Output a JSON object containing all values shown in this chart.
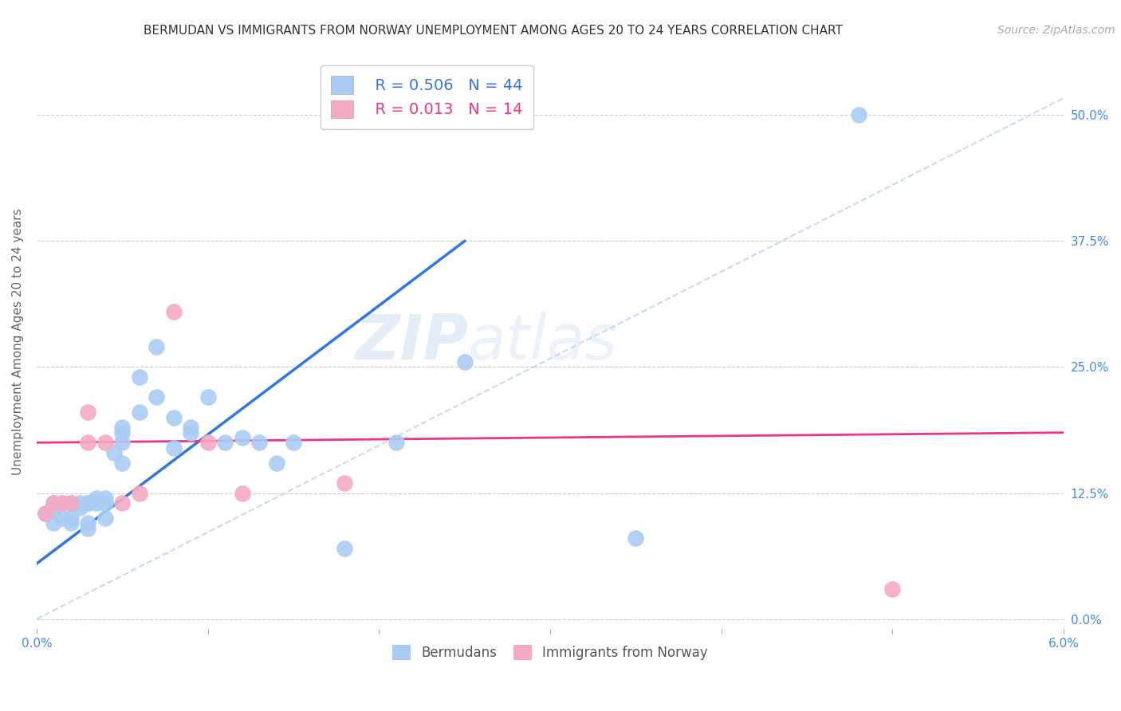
{
  "title": "BERMUDAN VS IMMIGRANTS FROM NORWAY UNEMPLOYMENT AMONG AGES 20 TO 24 YEARS CORRELATION CHART",
  "source": "Source: ZipAtlas.com",
  "ylabel": "Unemployment Among Ages 20 to 24 years",
  "xlim": [
    0.0,
    0.06
  ],
  "ylim": [
    -0.01,
    0.56
  ],
  "yticks": [
    0.0,
    0.125,
    0.25,
    0.375,
    0.5
  ],
  "ytick_labels": [
    "0.0%",
    "12.5%",
    "25.0%",
    "37.5%",
    "50.0%"
  ],
  "xticks": [
    0.0,
    0.01,
    0.02,
    0.03,
    0.04,
    0.05,
    0.06
  ],
  "xtick_labels": [
    "0.0%",
    "",
    "",
    "",
    "",
    "",
    "6.0%"
  ],
  "legend_blue_r": "0.506",
  "legend_blue_n": "44",
  "legend_pink_r": "0.013",
  "legend_pink_n": "14",
  "blue_color": "#aaccf4",
  "pink_color": "#f4aac4",
  "trend_blue_color": "#3377dd",
  "trend_pink_color": "#ee3388",
  "trend_dashed_color": "#b8d4f0",
  "watermark_zip": "ZIP",
  "watermark_atlas": "atlas",
  "blue_scatter_x": [
    0.0005,
    0.001,
    0.001,
    0.001,
    0.0015,
    0.0015,
    0.002,
    0.002,
    0.002,
    0.0025,
    0.0025,
    0.003,
    0.003,
    0.003,
    0.003,
    0.0035,
    0.0035,
    0.004,
    0.004,
    0.004,
    0.0045,
    0.005,
    0.005,
    0.005,
    0.005,
    0.006,
    0.006,
    0.007,
    0.007,
    0.008,
    0.008,
    0.009,
    0.009,
    0.01,
    0.011,
    0.012,
    0.013,
    0.014,
    0.015,
    0.018,
    0.021,
    0.025,
    0.035,
    0.048
  ],
  "blue_scatter_y": [
    0.105,
    0.11,
    0.115,
    0.095,
    0.115,
    0.1,
    0.115,
    0.1,
    0.095,
    0.115,
    0.11,
    0.115,
    0.115,
    0.095,
    0.09,
    0.12,
    0.115,
    0.12,
    0.115,
    0.1,
    0.165,
    0.175,
    0.19,
    0.185,
    0.155,
    0.205,
    0.24,
    0.27,
    0.22,
    0.2,
    0.17,
    0.19,
    0.185,
    0.22,
    0.175,
    0.18,
    0.175,
    0.155,
    0.175,
    0.07,
    0.175,
    0.255,
    0.08,
    0.5
  ],
  "pink_scatter_x": [
    0.0005,
    0.001,
    0.0015,
    0.002,
    0.003,
    0.003,
    0.004,
    0.005,
    0.006,
    0.008,
    0.01,
    0.012,
    0.018,
    0.05
  ],
  "pink_scatter_y": [
    0.105,
    0.115,
    0.115,
    0.115,
    0.175,
    0.205,
    0.175,
    0.115,
    0.125,
    0.305,
    0.175,
    0.125,
    0.135,
    0.03
  ],
  "title_fontsize": 11,
  "axis_label_fontsize": 11,
  "tick_fontsize": 11,
  "source_fontsize": 10
}
